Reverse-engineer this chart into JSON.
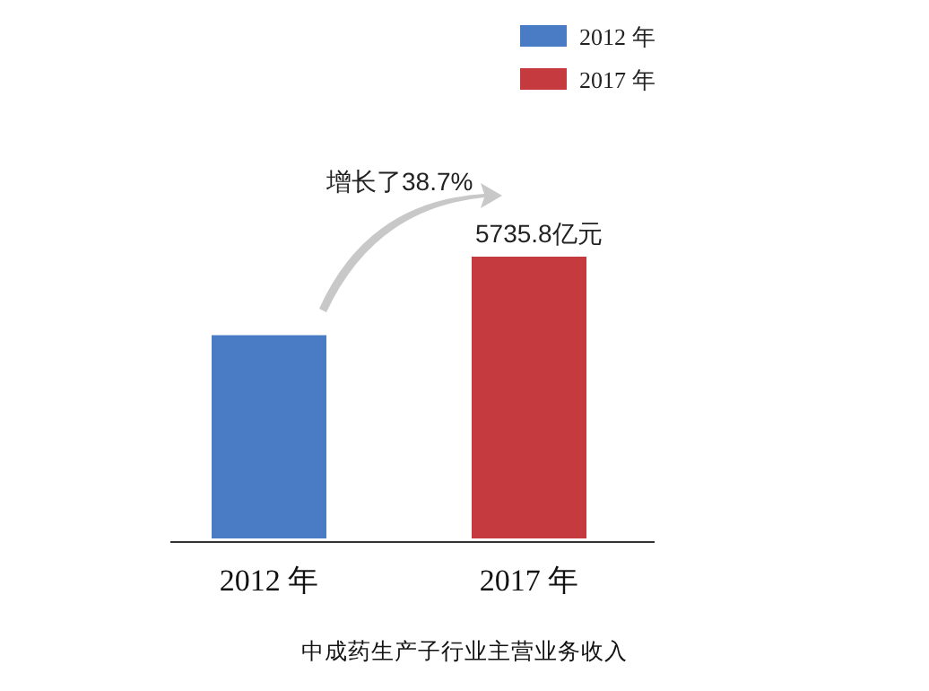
{
  "chart_data": {
    "type": "bar",
    "title": "中成药生产子行业主营业务收入",
    "categories": [
      "2012 年",
      "2017 年"
    ],
    "series": [
      {
        "name": "2012 年",
        "color": "#4a7cc6",
        "values": [
          4135.4,
          null
        ]
      },
      {
        "name": "2017 年",
        "color": "#c43a3e",
        "values": [
          null,
          5735.8
        ],
        "value_labels": [
          null,
          "5735.8亿元"
        ]
      }
    ],
    "annotations": [
      "增长了38.7%"
    ],
    "legend": "top right"
  }
}
